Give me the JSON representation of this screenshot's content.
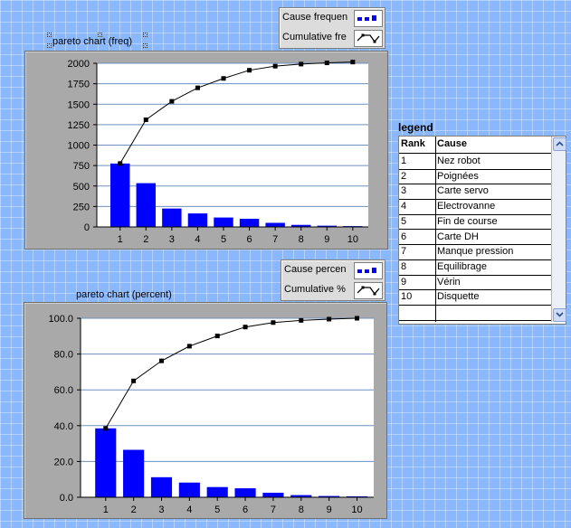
{
  "top_legend": {
    "rows": [
      {
        "label": "Cause frequen",
        "swatch": "bar-icon"
      },
      {
        "label": "Cumulative fre",
        "swatch": "line-icon"
      }
    ]
  },
  "bottom_legend": {
    "rows": [
      {
        "label": "Cause percen",
        "swatch": "bar-icon"
      },
      {
        "label": "Cumulative %",
        "swatch": "line-icon"
      }
    ]
  },
  "table": {
    "title": "legend",
    "headers": [
      "Rank",
      "Cause"
    ],
    "rows": [
      {
        "rank": "1",
        "cause": "Nez robot"
      },
      {
        "rank": "2",
        "cause": "Poignées"
      },
      {
        "rank": "3",
        "cause": "Carte servo"
      },
      {
        "rank": "4",
        "cause": "Electrovanne"
      },
      {
        "rank": "5",
        "cause": "Fin de course"
      },
      {
        "rank": "6",
        "cause": "Carte DH"
      },
      {
        "rank": "7",
        "cause": "Manque pression"
      },
      {
        "rank": "8",
        "cause": "Equilibrage"
      },
      {
        "rank": "9",
        "cause": "Vérin"
      },
      {
        "rank": "10",
        "cause": "Disquette"
      }
    ]
  },
  "colors": {
    "bar": "#0000ff",
    "line": "#000000",
    "grid": "#6f8fbf"
  },
  "chart_data": [
    {
      "type": "bar",
      "title": "pareto chart (freq)",
      "categories": [
        "1",
        "2",
        "3",
        "4",
        "5",
        "6",
        "7",
        "8",
        "9",
        "10"
      ],
      "series": [
        {
          "name": "Cause frequen",
          "type": "bar",
          "values": [
            775,
            535,
            225,
            165,
            115,
            100,
            50,
            25,
            15,
            10
          ]
        },
        {
          "name": "Cumulative fre",
          "type": "line",
          "values": [
            775,
            1310,
            1535,
            1700,
            1815,
            1915,
            1965,
            1990,
            2005,
            2015
          ]
        }
      ],
      "yticks": [
        "0",
        "250",
        "500",
        "750",
        "1000",
        "1250",
        "1500",
        "1750",
        "2000"
      ],
      "ylim": [
        0,
        2000
      ],
      "grid": true
    },
    {
      "type": "bar",
      "title": "pareto chart (percent)",
      "categories": [
        "1",
        "2",
        "3",
        "4",
        "5",
        "6",
        "7",
        "8",
        "9",
        "10"
      ],
      "series": [
        {
          "name": "Cause percen",
          "type": "bar",
          "values": [
            38.5,
            26.5,
            11.2,
            8.2,
            5.7,
            5.0,
            2.5,
            1.2,
            0.7,
            0.5
          ]
        },
        {
          "name": "Cumulative %",
          "type": "line",
          "values": [
            38.5,
            65.0,
            76.2,
            84.4,
            90.1,
            95.1,
            97.6,
            98.8,
            99.5,
            100.0
          ]
        }
      ],
      "yticks": [
        "0.0",
        "20.0",
        "40.0",
        "60.0",
        "80.0",
        "100.0"
      ],
      "ylim": [
        0,
        100
      ],
      "grid": true
    }
  ]
}
